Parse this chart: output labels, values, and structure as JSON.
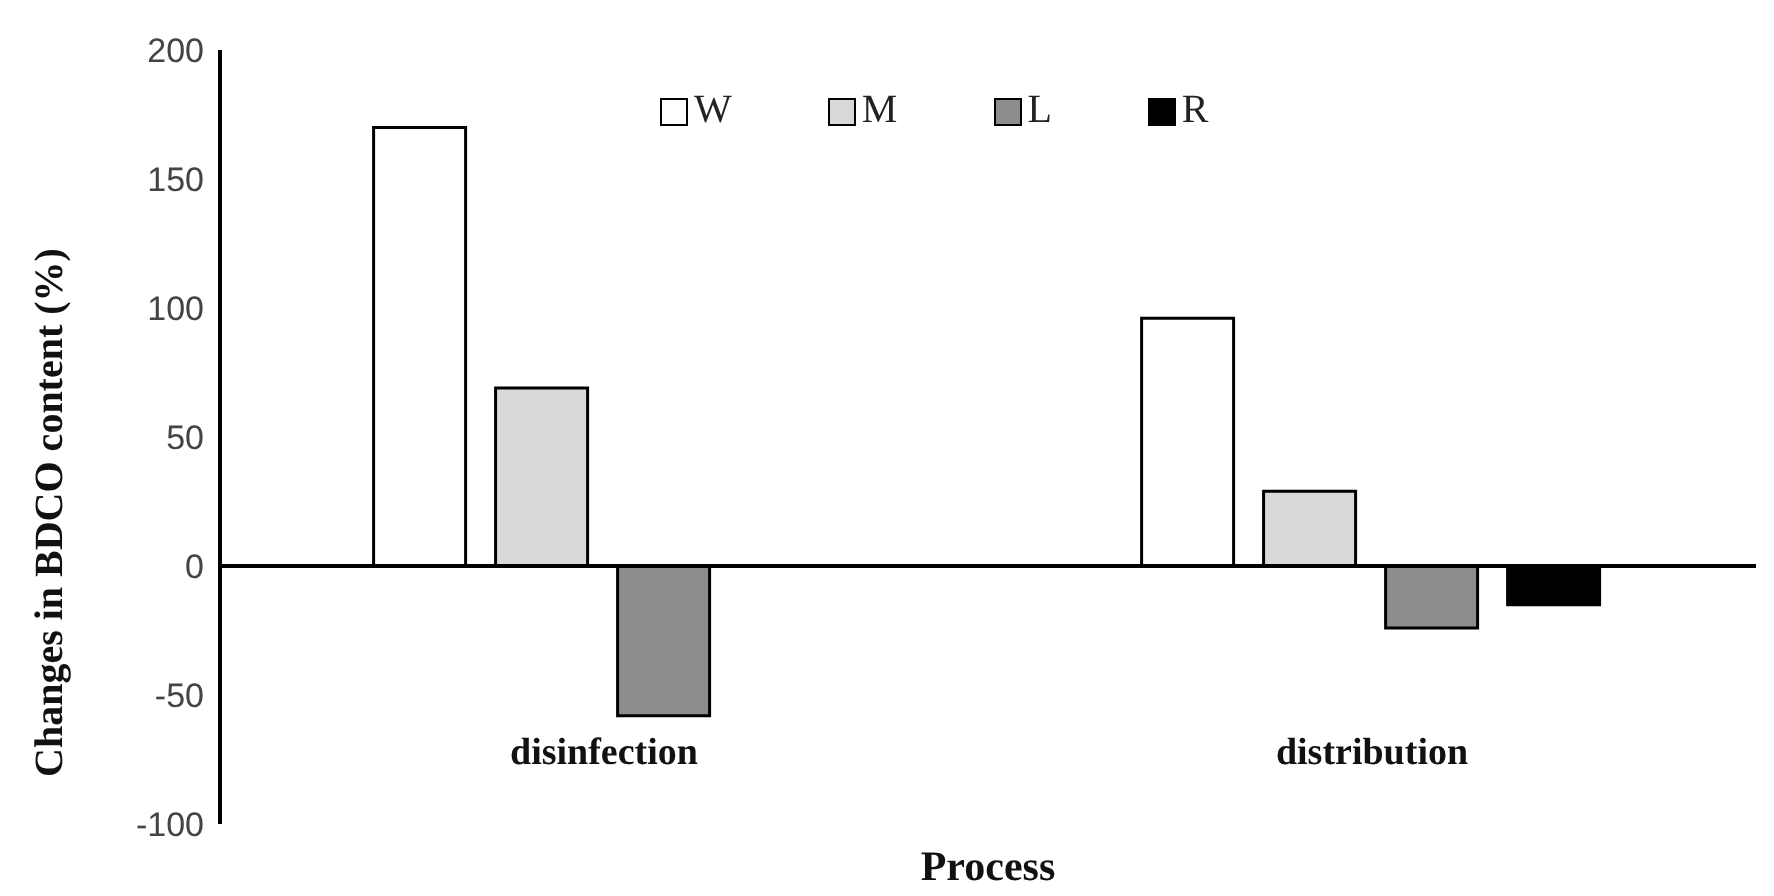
{
  "chart_data": {
    "type": "bar",
    "xlabel": "Process",
    "ylabel": "Changes in BDCO content (%)",
    "categories": [
      "disinfection",
      "distribution"
    ],
    "series": [
      {
        "name": "W",
        "color": "#ffffff",
        "values": [
          170,
          96
        ]
      },
      {
        "name": "M",
        "color": "#d9d9d9",
        "values": [
          69,
          29
        ]
      },
      {
        "name": "L",
        "color": "#8c8c8c",
        "values": [
          -58,
          -24
        ]
      },
      {
        "name": "R",
        "color": "#000000",
        "values": [
          null,
          -15
        ]
      }
    ],
    "ylim": [
      -100,
      200
    ],
    "yticks": [
      -100,
      -50,
      0,
      50,
      100,
      150,
      200
    ],
    "legend": "top"
  }
}
